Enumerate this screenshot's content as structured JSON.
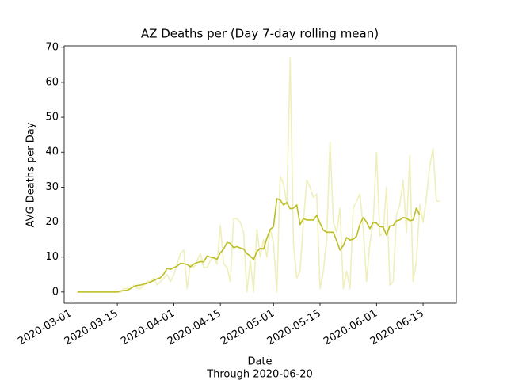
{
  "chart_data": {
    "type": "line",
    "title": "AZ Deaths per (Day 7-day rolling mean)",
    "x_label": "Date",
    "y_label": "AVG Deaths per Day",
    "caption": "Through 2020-06-20",
    "xlim": [
      "2020-02-28",
      "2020-06-25"
    ],
    "xticks": [
      "2020-03-01",
      "2020-03-15",
      "2020-04-01",
      "2020-04-15",
      "2020-05-01",
      "2020-05-15",
      "2020-06-01",
      "2020-06-15"
    ],
    "ylim": [
      -3.2,
      70.4
    ],
    "yticks": [
      0,
      10,
      20,
      30,
      40,
      50,
      60,
      70
    ],
    "x": [
      "2020-03-03",
      "2020-03-04",
      "2020-03-05",
      "2020-03-06",
      "2020-03-07",
      "2020-03-08",
      "2020-03-09",
      "2020-03-10",
      "2020-03-11",
      "2020-03-12",
      "2020-03-13",
      "2020-03-14",
      "2020-03-15",
      "2020-03-16",
      "2020-03-17",
      "2020-03-18",
      "2020-03-19",
      "2020-03-20",
      "2020-03-21",
      "2020-03-22",
      "2020-03-23",
      "2020-03-24",
      "2020-03-25",
      "2020-03-26",
      "2020-03-27",
      "2020-03-28",
      "2020-03-29",
      "2020-03-30",
      "2020-03-31",
      "2020-04-01",
      "2020-04-02",
      "2020-04-03",
      "2020-04-04",
      "2020-04-05",
      "2020-04-06",
      "2020-04-07",
      "2020-04-08",
      "2020-04-09",
      "2020-04-10",
      "2020-04-11",
      "2020-04-12",
      "2020-04-13",
      "2020-04-14",
      "2020-04-15",
      "2020-04-16",
      "2020-04-17",
      "2020-04-18",
      "2020-04-19",
      "2020-04-20",
      "2020-04-21",
      "2020-04-22",
      "2020-04-23",
      "2020-04-24",
      "2020-04-25",
      "2020-04-26",
      "2020-04-27",
      "2020-04-28",
      "2020-04-29",
      "2020-04-30",
      "2020-05-01",
      "2020-05-02",
      "2020-05-03",
      "2020-05-04",
      "2020-05-05",
      "2020-05-06",
      "2020-05-07",
      "2020-05-08",
      "2020-05-09",
      "2020-05-10",
      "2020-05-11",
      "2020-05-12",
      "2020-05-13",
      "2020-05-14",
      "2020-05-15",
      "2020-05-16",
      "2020-05-17",
      "2020-05-18",
      "2020-05-19",
      "2020-05-20",
      "2020-05-21",
      "2020-05-22",
      "2020-05-23",
      "2020-05-24",
      "2020-05-25",
      "2020-05-26",
      "2020-05-27",
      "2020-05-28",
      "2020-05-29",
      "2020-05-30",
      "2020-05-31",
      "2020-06-01",
      "2020-06-02",
      "2020-06-03",
      "2020-06-04",
      "2020-06-05",
      "2020-06-06",
      "2020-06-07",
      "2020-06-08",
      "2020-06-09",
      "2020-06-10",
      "2020-06-11",
      "2020-06-12",
      "2020-06-13",
      "2020-06-14",
      "2020-06-15",
      "2020-06-16",
      "2020-06-17",
      "2020-06-18",
      "2020-06-19",
      "2020-06-20"
    ],
    "series": [
      {
        "color": "#efefbd",
        "values": [
          0,
          0,
          0,
          0,
          0,
          0,
          0,
          0,
          0,
          0,
          0,
          0,
          0,
          0,
          1,
          1,
          1,
          2,
          1,
          1,
          2,
          3,
          3,
          4,
          2,
          3,
          4,
          5,
          3,
          5,
          8,
          11,
          12,
          1,
          8,
          7,
          9,
          11,
          7,
          7,
          9,
          10,
          8,
          19,
          8,
          7,
          3,
          21,
          21,
          20,
          17,
          0,
          9,
          0,
          18,
          10,
          15,
          10,
          18,
          14,
          0,
          33,
          31,
          25,
          67,
          14,
          4,
          6,
          20,
          32,
          30,
          27,
          28,
          1,
          6,
          15,
          43,
          20,
          17,
          24,
          1,
          6,
          1,
          24,
          26,
          28,
          18,
          3,
          14,
          20,
          40,
          16,
          17,
          30,
          2,
          3,
          22,
          25,
          32,
          17,
          39,
          3,
          9,
          25,
          20,
          27,
          36,
          41,
          26,
          26
        ]
      },
      {
        "color": "#bcbd22",
        "values": [
          0,
          0,
          0,
          0,
          0,
          0,
          0,
          0,
          0,
          0,
          0,
          0,
          0,
          0.3,
          0.4,
          0.5,
          1,
          1.6,
          1.9,
          2,
          2.3,
          2.5,
          2.9,
          3.3,
          3.8,
          4.1,
          5.2,
          6.8,
          6.5,
          7,
          7.4,
          8.2,
          8.1,
          7.9,
          7.2,
          8,
          8.4,
          8.7,
          8.6,
          10.3,
          10,
          9.8,
          9.4,
          11.2,
          12.3,
          14.2,
          13.9,
          12.7,
          13,
          12.6,
          12.3,
          11,
          10.3,
          9.3,
          11.6,
          12.5,
          12.3,
          15.4,
          17.9,
          18.7,
          26.7,
          26.3,
          24.9,
          25.6,
          23.8,
          24,
          24.9,
          19.3,
          21,
          20.6,
          20.6,
          20.6,
          21.9,
          19.7,
          17.7,
          17.1,
          17.1,
          17.1,
          14.6,
          12,
          13.3,
          15.6,
          14.9,
          15.1,
          16,
          19.4,
          21.3,
          20,
          18.1,
          19.9,
          19.7,
          18.7,
          18.6,
          16.3,
          18.9,
          19,
          20.4,
          20.6,
          21.3,
          21.1,
          20.4,
          20.6,
          24,
          22,
          null,
          null,
          null,
          null,
          null,
          null
        ]
      }
    ]
  }
}
